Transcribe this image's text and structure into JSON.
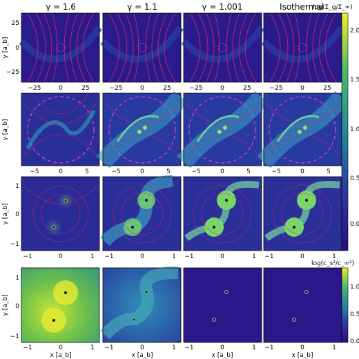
{
  "column_titles": [
    "γ = 1.6",
    "γ = 1.1",
    "γ = 1.001",
    "Isothermal"
  ],
  "colorbar_top": {
    "label": "log(Σ_g/Σ_∞)",
    "ticks": [
      "0.0",
      "0.5",
      "1.0",
      "1.5",
      "2.0"
    ],
    "range": [
      -0.35,
      2.25
    ]
  },
  "colorbar_bottom": {
    "label": "log(c_s²/c_∞²)",
    "ticks": [
      "0.0",
      "0.5",
      "1.0"
    ],
    "range": [
      -0.05,
      1.3
    ]
  },
  "rows": [
    {
      "ylabel": "y [a_b]",
      "yticks": [
        "25",
        "0",
        "−25"
      ],
      "xticks": [
        "−25",
        "0",
        "25"
      ]
    },
    {
      "ylabel": "y [a_b]",
      "yticks": [],
      "xticks": [
        "−5",
        "0",
        "5"
      ]
    },
    {
      "ylabel": "y [a_b]",
      "yticks": [
        "1",
        "0",
        "−1"
      ],
      "xticks": [
        "−1",
        "0",
        "1"
      ]
    },
    {
      "ylabel": "y [a_b]",
      "yticks": [
        "1",
        "0",
        "−1"
      ],
      "xticks": [
        "−1",
        "0",
        "1"
      ]
    }
  ],
  "xlabel": "x [a_b]",
  "colors": {
    "background_low": "#2b1a8c",
    "background_mid": "#2a3fa5",
    "arm": "#2f8fb6",
    "arm_bright": "#7ad56a",
    "streamline": "#e0245a",
    "dashed_circle": "#d23ad6",
    "warm_field": "#6fc24a",
    "cold_field": "#2b168a"
  }
}
